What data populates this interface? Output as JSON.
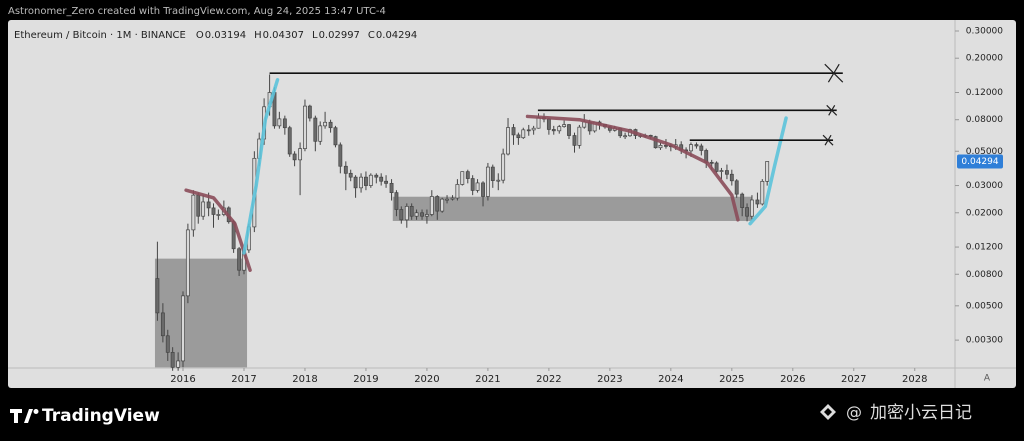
{
  "header": "Astronomer_Zero created with TradingView.com, Aug 24, 2025 13:47 UTC-4",
  "chart_data": {
    "type": "candlestick",
    "symbol": "Ethereum / Bitcoin · 1M · BINANCE",
    "ohlc_keys": [
      "O",
      "H",
      "L",
      "C"
    ],
    "log_scale": true,
    "grid": false,
    "auto_label": "A",
    "xlim": [
      2013.13,
      2028.66
    ],
    "xticks": [
      2016,
      2017,
      2018,
      2019,
      2020,
      2021,
      2022,
      2023,
      2024,
      2025,
      2026,
      2027,
      2028
    ],
    "ylim": [
      0.00198,
      0.343
    ],
    "yticks": [
      {
        "value": 0.003,
        "label": "0.00300"
      },
      {
        "value": 0.005,
        "label": "0.00500"
      },
      {
        "value": 0.008,
        "label": "0.00800"
      },
      {
        "value": 0.012,
        "label": "0.01200"
      },
      {
        "value": 0.02,
        "label": "0.02000"
      },
      {
        "value": 0.03,
        "label": "0.03000"
      },
      {
        "value": 0.05,
        "label": "0.05000"
      },
      {
        "value": 0.08,
        "label": "0.08000"
      },
      {
        "value": 0.12,
        "label": "0.12000"
      },
      {
        "value": 0.2,
        "label": "0.20000"
      },
      {
        "value": 0.3,
        "label": "0.30000"
      }
    ],
    "up_color": "#d9d9d9",
    "down_color": "#6a6a6a",
    "x": [
      2015.58,
      2015.67,
      2015.75,
      2015.83,
      2015.92,
      2016.0,
      2016.08,
      2016.17,
      2016.25,
      2016.33,
      2016.42,
      2016.5,
      2016.58,
      2016.67,
      2016.75,
      2016.83,
      2016.92,
      2017.0,
      2017.08,
      2017.17,
      2017.25,
      2017.33,
      2017.42,
      2017.5,
      2017.58,
      2017.67,
      2017.75,
      2017.83,
      2017.92,
      2018.0,
      2018.08,
      2018.17,
      2018.25,
      2018.33,
      2018.42,
      2018.5,
      2018.58,
      2018.67,
      2018.75,
      2018.83,
      2018.92,
      2019.0,
      2019.08,
      2019.17,
      2019.25,
      2019.33,
      2019.42,
      2019.5,
      2019.58,
      2019.67,
      2019.75,
      2019.83,
      2019.92,
      2020.0,
      2020.08,
      2020.17,
      2020.25,
      2020.33,
      2020.42,
      2020.5,
      2020.58,
      2020.67,
      2020.75,
      2020.83,
      2020.92,
      2021.0,
      2021.08,
      2021.17,
      2021.25,
      2021.33,
      2021.42,
      2021.5,
      2021.58,
      2021.67,
      2021.75,
      2021.83,
      2021.92,
      2022.0,
      2022.08,
      2022.17,
      2022.25,
      2022.33,
      2022.42,
      2022.5,
      2022.58,
      2022.67,
      2022.75,
      2022.83,
      2022.92,
      2023.0,
      2023.08,
      2023.17,
      2023.25,
      2023.33,
      2023.42,
      2023.5,
      2023.58,
      2023.67,
      2023.75,
      2023.83,
      2023.92,
      2024.0,
      2024.08,
      2024.17,
      2024.25,
      2024.33,
      2024.42,
      2024.5,
      2024.58,
      2024.67,
      2024.75,
      2024.83,
      2024.92,
      2025.0,
      2025.08,
      2025.17,
      2025.25,
      2025.33,
      2025.42,
      2025.5,
      2025.58
    ],
    "opens": [
      0.0075,
      0.0045,
      0.0032,
      0.0025,
      0.002,
      0.0022,
      0.0058,
      0.0155,
      0.026,
      0.019,
      0.0235,
      0.0215,
      0.0195,
      0.0195,
      0.0215,
      0.0175,
      0.0117,
      0.0085,
      0.0115,
      0.0162,
      0.045,
      0.06,
      0.097,
      0.12,
      0.073,
      0.081,
      0.071,
      0.048,
      0.044,
      0.052,
      0.098,
      0.082,
      0.058,
      0.073,
      0.077,
      0.071,
      0.055,
      0.04,
      0.036,
      0.034,
      0.029,
      0.034,
      0.03,
      0.035,
      0.034,
      0.032,
      0.031,
      0.027,
      0.021,
      0.018,
      0.022,
      0.019,
      0.02,
      0.019,
      0.0195,
      0.0255,
      0.0205,
      0.0245,
      0.0245,
      0.0249,
      0.0305,
      0.0369,
      0.0333,
      0.0279,
      0.0312,
      0.0255,
      0.0395,
      0.0323,
      0.0325,
      0.048,
      0.0712,
      0.0638,
      0.0612,
      0.0688,
      0.0687,
      0.0705,
      0.0825,
      0.0808,
      0.0692,
      0.0678,
      0.0722,
      0.0744,
      0.0632,
      0.0546,
      0.0716,
      0.0773,
      0.0677,
      0.0773,
      0.0747,
      0.0719,
      0.0683,
      0.0706,
      0.063,
      0.063,
      0.0691,
      0.0632,
      0.0632,
      0.0634,
      0.0622,
      0.0527,
      0.0546,
      0.0543,
      0.0535,
      0.0551,
      0.051,
      0.0503,
      0.0552,
      0.0541,
      0.0506,
      0.0424,
      0.042,
      0.037,
      0.0375,
      0.0355,
      0.0322,
      0.0264,
      0.0216,
      0.019,
      0.0242,
      0.0228,
      0.03194
    ],
    "highs": [
      0.013,
      0.0052,
      0.0035,
      0.0027,
      0.0025,
      0.0062,
      0.017,
      0.028,
      0.027,
      0.026,
      0.027,
      0.023,
      0.021,
      0.024,
      0.022,
      0.018,
      0.012,
      0.012,
      0.017,
      0.05,
      0.066,
      0.11,
      0.157,
      0.13,
      0.09,
      0.085,
      0.073,
      0.05,
      0.057,
      0.108,
      0.1,
      0.085,
      0.078,
      0.09,
      0.08,
      0.073,
      0.057,
      0.043,
      0.038,
      0.035,
      0.036,
      0.037,
      0.036,
      0.036,
      0.036,
      0.035,
      0.033,
      0.028,
      0.022,
      0.023,
      0.023,
      0.021,
      0.021,
      0.021,
      0.028,
      0.026,
      0.025,
      0.026,
      0.026,
      0.033,
      0.037,
      0.038,
      0.035,
      0.033,
      0.032,
      0.042,
      0.041,
      0.036,
      0.052,
      0.082,
      0.075,
      0.066,
      0.071,
      0.074,
      0.073,
      0.088,
      0.088,
      0.082,
      0.073,
      0.074,
      0.079,
      0.075,
      0.066,
      0.074,
      0.087,
      0.08,
      0.078,
      0.079,
      0.075,
      0.073,
      0.073,
      0.071,
      0.066,
      0.07,
      0.07,
      0.065,
      0.065,
      0.064,
      0.063,
      0.057,
      0.06,
      0.056,
      0.06,
      0.058,
      0.053,
      0.057,
      0.057,
      0.056,
      0.052,
      0.044,
      0.043,
      0.039,
      0.041,
      0.038,
      0.033,
      0.027,
      0.023,
      0.026,
      0.027,
      0.033,
      0.04307
    ],
    "lows": [
      0.004,
      0.0029,
      0.0022,
      0.0019,
      0.0019,
      0.002,
      0.0052,
      0.014,
      0.017,
      0.018,
      0.019,
      0.016,
      0.018,
      0.019,
      0.017,
      0.011,
      0.0078,
      0.008,
      0.011,
      0.015,
      0.04,
      0.055,
      0.085,
      0.07,
      0.07,
      0.064,
      0.046,
      0.04,
      0.026,
      0.05,
      0.078,
      0.05,
      0.055,
      0.07,
      0.066,
      0.053,
      0.036,
      0.028,
      0.032,
      0.025,
      0.027,
      0.028,
      0.029,
      0.031,
      0.03,
      0.029,
      0.024,
      0.019,
      0.017,
      0.016,
      0.018,
      0.018,
      0.018,
      0.017,
      0.019,
      0.018,
      0.02,
      0.023,
      0.024,
      0.024,
      0.03,
      0.031,
      0.026,
      0.027,
      0.022,
      0.024,
      0.029,
      0.028,
      0.031,
      0.047,
      0.055,
      0.055,
      0.06,
      0.063,
      0.064,
      0.07,
      0.077,
      0.064,
      0.064,
      0.065,
      0.071,
      0.06,
      0.049,
      0.052,
      0.07,
      0.064,
      0.066,
      0.069,
      0.07,
      0.066,
      0.067,
      0.061,
      0.06,
      0.062,
      0.06,
      0.061,
      0.061,
      0.06,
      0.052,
      0.051,
      0.052,
      0.05,
      0.051,
      0.048,
      0.045,
      0.046,
      0.052,
      0.047,
      0.039,
      0.038,
      0.036,
      0.033,
      0.033,
      0.03,
      0.025,
      0.019,
      0.0176,
      0.018,
      0.0215,
      0.0223,
      0.02997
    ],
    "closes": [
      0.0045,
      0.0032,
      0.0025,
      0.002,
      0.0022,
      0.0058,
      0.0155,
      0.026,
      0.019,
      0.0235,
      0.0215,
      0.0195,
      0.0195,
      0.0215,
      0.0175,
      0.0117,
      0.0085,
      0.0115,
      0.0162,
      0.045,
      0.06,
      0.097,
      0.12,
      0.073,
      0.081,
      0.071,
      0.048,
      0.044,
      0.052,
      0.098,
      0.082,
      0.058,
      0.073,
      0.077,
      0.071,
      0.055,
      0.04,
      0.036,
      0.034,
      0.029,
      0.034,
      0.03,
      0.035,
      0.034,
      0.032,
      0.031,
      0.027,
      0.021,
      0.018,
      0.022,
      0.019,
      0.02,
      0.019,
      0.0195,
      0.0255,
      0.0205,
      0.0245,
      0.0245,
      0.0249,
      0.0305,
      0.0369,
      0.0333,
      0.0279,
      0.0312,
      0.0255,
      0.0395,
      0.0323,
      0.0325,
      0.048,
      0.0712,
      0.0638,
      0.0612,
      0.0688,
      0.0687,
      0.0705,
      0.0825,
      0.0808,
      0.0692,
      0.0678,
      0.0722,
      0.0744,
      0.0632,
      0.0546,
      0.0716,
      0.0773,
      0.0677,
      0.0773,
      0.0747,
      0.0719,
      0.0683,
      0.0706,
      0.063,
      0.063,
      0.0691,
      0.0632,
      0.0632,
      0.0634,
      0.0622,
      0.0527,
      0.0546,
      0.0543,
      0.0535,
      0.0551,
      0.051,
      0.0503,
      0.0552,
      0.0541,
      0.0506,
      0.0424,
      0.042,
      0.037,
      0.0375,
      0.0355,
      0.0322,
      0.0264,
      0.0216,
      0.019,
      0.0242,
      0.0228,
      0.03194,
      0.04294
    ],
    "boxes": [
      {
        "x": [
          2015.54,
          2017.05
        ],
        "y": [
          0.0101,
          0.002
        ]
      },
      {
        "x": [
          2019.44,
          2025.33
        ],
        "y": [
          0.0254,
          0.0177
        ]
      }
    ],
    "levels": [
      {
        "x": [
          2017.42,
          2026.82
        ],
        "y": 0.16
      },
      {
        "x": [
          2021.82,
          2026.72
        ],
        "y": 0.092
      },
      {
        "x": [
          2024.31,
          2026.66
        ],
        "y": 0.059
      }
    ],
    "curves": [
      {
        "color": "#8b4d5a",
        "x": [
          2016.05,
          2016.5,
          2016.85,
          2017.1
        ],
        "y": [
          0.028,
          0.025,
          0.017,
          0.0085
        ]
      },
      {
        "color": "#8b4d5a",
        "x": [
          2021.65,
          2022.5,
          2023.3,
          2024.0,
          2024.6,
          2025.0,
          2025.1
        ],
        "y": [
          0.084,
          0.08,
          0.068,
          0.055,
          0.042,
          0.026,
          0.018
        ]
      },
      {
        "color": "#5cc3da",
        "x": [
          2017.0,
          2017.2,
          2017.35,
          2017.55
        ],
        "y": [
          0.011,
          0.03,
          0.08,
          0.145
        ]
      },
      {
        "color": "#5cc3da",
        "x": [
          2025.3,
          2025.55,
          2025.7,
          2025.89
        ],
        "y": [
          0.017,
          0.022,
          0.04,
          0.082
        ]
      }
    ]
  },
  "footer": {
    "brand": "TradingView",
    "watermark": "加密小云日记"
  }
}
